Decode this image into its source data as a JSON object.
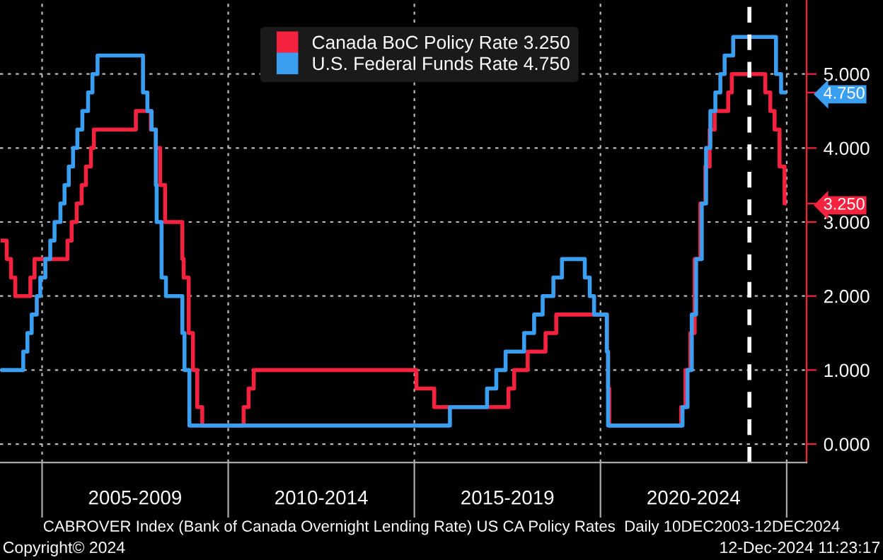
{
  "chart_data": {
    "type": "step",
    "xlabel": null,
    "xlim": [
      "2003-11-15",
      "2025-07-15"
    ],
    "xticks": [
      {
        "value": "2005-01-01",
        "label": null
      },
      {
        "value": "2007-07-02",
        "label": "2005-2009"
      },
      {
        "value": "2010-01-01",
        "label": null
      },
      {
        "value": "2012-07-02",
        "label": "2010-2014"
      },
      {
        "value": "2015-01-01",
        "label": null
      },
      {
        "value": "2017-07-02",
        "label": "2015-2019"
      },
      {
        "value": "2020-01-01",
        "label": null
      },
      {
        "value": "2022-07-02",
        "label": "2020-2024"
      },
      {
        "value": "2025-01-01",
        "label": null
      }
    ],
    "ylim": [
      -0.25,
      6.0
    ],
    "yticks": [
      {
        "value": 0,
        "label": "0.000"
      },
      {
        "value": 1,
        "label": "1.000"
      },
      {
        "value": 2,
        "label": "2.000"
      },
      {
        "value": 3,
        "label": "3.000"
      },
      {
        "value": 3.25,
        "label": "3.250"
      },
      {
        "value": 4,
        "label": "4.000"
      },
      {
        "value": 4.75,
        "label": "4.750"
      },
      {
        "value": 5,
        "label": "5.000"
      }
    ],
    "grid": true,
    "legend": "top",
    "line_style": "solid",
    "marker": "none",
    "series": [
      {
        "name": "Canada BoC Policy Rate 3.250",
        "color": "#f5223f",
        "x": [
          "2003-12-10",
          "2004-01-20",
          "2004-03-02",
          "2004-04-13",
          "2004-09-08",
          "2004-10-19",
          "2005-09-07",
          "2005-10-18",
          "2005-12-06",
          "2006-01-24",
          "2006-03-07",
          "2006-04-25",
          "2006-05-24",
          "2007-07-10",
          "2007-12-04",
          "2008-01-22",
          "2008-03-04",
          "2008-04-22",
          "2008-10-08",
          "2008-10-21",
          "2008-12-09",
          "2009-01-20",
          "2009-03-03",
          "2009-04-21",
          "2010-06-01",
          "2010-07-20",
          "2010-09-08",
          "2015-01-21",
          "2015-07-15",
          "2017-07-12",
          "2017-09-06",
          "2018-01-17",
          "2018-07-11",
          "2018-10-24",
          "2020-03-04",
          "2020-03-16",
          "2020-03-27",
          "2022-03-02",
          "2022-04-13",
          "2022-06-01",
          "2022-07-13",
          "2022-09-07",
          "2022-10-26",
          "2022-12-07",
          "2023-01-25",
          "2023-06-07",
          "2023-07-12",
          "2024-06-05",
          "2024-07-24",
          "2024-09-04",
          "2024-10-23",
          "2024-12-11",
          "2024-12-12"
        ],
        "values": [
          2.75,
          2.5,
          2.25,
          2.0,
          2.25,
          2.5,
          2.75,
          3.0,
          3.25,
          3.5,
          3.75,
          4.0,
          4.25,
          4.5,
          4.25,
          4.0,
          3.5,
          3.0,
          2.5,
          2.25,
          1.5,
          1.0,
          0.5,
          0.25,
          0.5,
          0.75,
          1.0,
          0.75,
          0.5,
          0.75,
          1.0,
          1.25,
          1.5,
          1.75,
          1.25,
          0.75,
          0.25,
          0.5,
          1.0,
          1.5,
          2.5,
          3.25,
          3.75,
          4.25,
          4.5,
          4.75,
          5.0,
          4.75,
          4.5,
          4.25,
          3.75,
          3.25,
          3.25
        ]
      },
      {
        "name": "U.S. Federal Funds Rate 4.750",
        "color": "#3a9ff0",
        "x": [
          "2003-12-10",
          "2004-06-30",
          "2004-08-10",
          "2004-09-21",
          "2004-11-10",
          "2004-12-14",
          "2005-02-02",
          "2005-03-22",
          "2005-05-03",
          "2005-06-30",
          "2005-08-09",
          "2005-09-20",
          "2005-11-01",
          "2005-12-13",
          "2006-01-31",
          "2006-03-28",
          "2006-05-10",
          "2006-06-29",
          "2007-09-18",
          "2007-10-31",
          "2007-12-11",
          "2008-01-22",
          "2008-01-30",
          "2008-03-18",
          "2008-04-30",
          "2008-10-08",
          "2008-10-29",
          "2008-12-16",
          "2015-12-16",
          "2016-12-14",
          "2017-03-15",
          "2017-06-14",
          "2017-12-13",
          "2018-03-21",
          "2018-06-13",
          "2018-09-26",
          "2018-12-19",
          "2019-07-31",
          "2019-09-18",
          "2019-10-30",
          "2020-03-03",
          "2020-03-15",
          "2022-03-16",
          "2022-05-04",
          "2022-06-15",
          "2022-07-27",
          "2022-09-21",
          "2022-11-02",
          "2022-12-14",
          "2023-02-01",
          "2023-03-22",
          "2023-05-03",
          "2023-07-26",
          "2024-09-18",
          "2024-11-07",
          "2024-12-12"
        ],
        "values": [
          1.0,
          1.25,
          1.5,
          1.75,
          2.0,
          2.25,
          2.5,
          2.75,
          3.0,
          3.25,
          3.5,
          3.75,
          4.0,
          4.25,
          4.5,
          4.75,
          5.0,
          5.25,
          4.75,
          4.5,
          4.25,
          3.5,
          3.0,
          2.25,
          2.0,
          1.5,
          1.0,
          0.25,
          0.5,
          0.75,
          1.0,
          1.25,
          1.5,
          1.75,
          2.0,
          2.25,
          2.5,
          2.25,
          2.0,
          1.75,
          1.25,
          0.25,
          0.5,
          1.0,
          1.75,
          2.5,
          3.25,
          4.0,
          4.5,
          4.75,
          5.0,
          5.25,
          5.5,
          5.0,
          4.75,
          4.75
        ]
      }
    ],
    "ref_lines": [
      {
        "axis": "x",
        "value": "2024-01-01",
        "color": "#ffffff",
        "line_style": "dashed"
      }
    ],
    "annotations": [
      "CABROVER Index (Bank of Canada Overnight Lending Rate) US CA Policy Rates  Daily 10DEC2003-12DEC2024",
      "Copyright© 2024",
      "12-Dec-2024 11:23:17"
    ]
  }
}
